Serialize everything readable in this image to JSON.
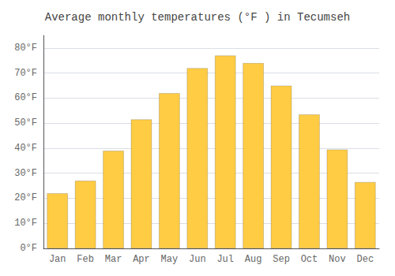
{
  "chart_data": {
    "type": "bar",
    "title": "Average monthly temperatures (°F ) in Tecumseh",
    "categories": [
      "Jan",
      "Feb",
      "Mar",
      "Apr",
      "May",
      "Jun",
      "Jul",
      "Aug",
      "Sep",
      "Oct",
      "Nov",
      "Dec"
    ],
    "values": [
      22,
      27,
      39,
      51.5,
      62,
      72,
      77,
      74,
      65,
      53.5,
      39.5,
      26.5
    ],
    "color": "#FFCC44",
    "ylim": [
      0,
      85
    ],
    "yticks": [
      {
        "value": 0,
        "label": "0°F"
      },
      {
        "value": 10,
        "label": "10°F"
      },
      {
        "value": 20,
        "label": "20°F"
      },
      {
        "value": 30,
        "label": "30°F"
      },
      {
        "value": 40,
        "label": "40°F"
      },
      {
        "value": 50,
        "label": "50°F"
      },
      {
        "value": 60,
        "label": "60°F"
      },
      {
        "value": 70,
        "label": "70°F"
      },
      {
        "value": 80,
        "label": "80°F"
      }
    ],
    "grid": true
  }
}
